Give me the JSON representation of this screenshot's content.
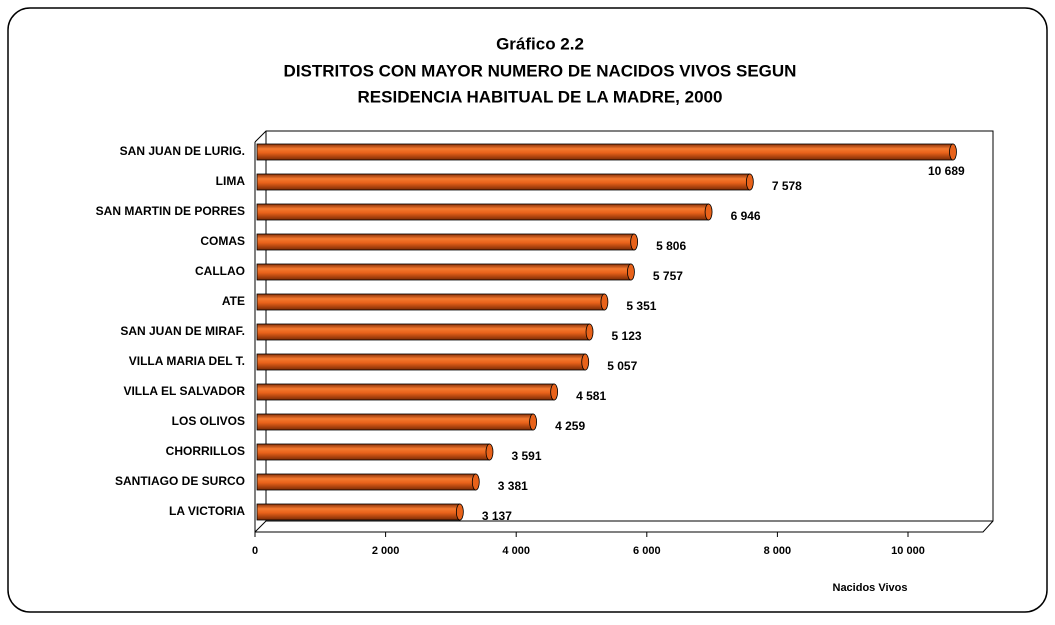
{
  "chart_data": {
    "type": "bar",
    "orientation": "horizontal",
    "title": [
      "Gráfico 2.2",
      "DISTRITOS CON MAYOR NUMERO DE NACIDOS VIVOS SEGUN",
      "RESIDENCIA HABITUAL DE LA MADRE, 2000"
    ],
    "x_label": "Nacidos Vivos",
    "categories": [
      "SAN JUAN DE LURIG.",
      "LIMA",
      "SAN MARTIN DE PORRES",
      "COMAS",
      "CALLAO",
      "ATE",
      "SAN JUAN DE MIRAF.",
      "VILLA MARIA DEL T.",
      "VILLA EL SALVADOR",
      "LOS OLIVOS",
      "CHORRILLOS",
      "SANTIAGO DE SURCO",
      "LA VICTORIA"
    ],
    "values": [
      10689,
      7578,
      6946,
      5806,
      5757,
      5351,
      5123,
      5057,
      4581,
      4259,
      3591,
      3381,
      3137
    ],
    "value_labels": [
      "10 689",
      "7 578",
      "6 946",
      "5 806",
      "5 757",
      "5 351",
      "5 123",
      "5 057",
      "4 581",
      "4 259",
      "3 591",
      "3 381",
      "3 137"
    ],
    "color": "#e8621a",
    "xlim": [
      0,
      11200
    ],
    "xticks": [
      0,
      {
        "value": 2000,
        "label": "2 000"
      },
      {
        "value": 4000,
        "label": "4 000"
      },
      {
        "value": 6000,
        "label": "6 000"
      },
      {
        "value": 8000,
        "label": "8 000"
      },
      {
        "value": 10000,
        "label": "10 000"
      }
    ]
  }
}
